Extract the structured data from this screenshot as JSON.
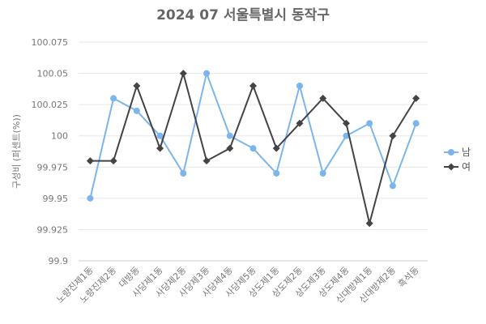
{
  "chart_data": {
    "type": "line",
    "title": "2024 07 서울특별시 동작구",
    "ylabel": "구성비 (퍼센트(%))",
    "xlabel": "",
    "ylim": [
      99.9,
      100.075
    ],
    "yticks": [
      "99.9",
      "99.925",
      "99.95",
      "99.975",
      "100",
      "100.025",
      "100.05",
      "100.075"
    ],
    "categories": [
      "노량진제1동",
      "노량진제2동",
      "대방동",
      "사당제1동",
      "사당제2동",
      "사당제3동",
      "사당제4동",
      "사당제5동",
      "상도제1동",
      "상도제2동",
      "상도제3동",
      "상도제4동",
      "신대방제1동",
      "신대방제2동",
      "흑석동"
    ],
    "series": [
      {
        "name": "남",
        "color": "#7cb5ec",
        "marker": "circle",
        "values": [
          99.95,
          100.03,
          100.02,
          100.0,
          99.97,
          100.05,
          100.0,
          99.99,
          99.97,
          100.04,
          99.97,
          100.0,
          100.01,
          99.96,
          100.01
        ]
      },
      {
        "name": "여",
        "color": "#434348",
        "marker": "diamond",
        "values": [
          99.98,
          99.98,
          100.04,
          99.99,
          100.05,
          99.98,
          99.99,
          100.04,
          99.99,
          100.01,
          100.03,
          100.01,
          99.93,
          100.0,
          100.03
        ]
      }
    ],
    "grid": true,
    "legend": "right"
  }
}
